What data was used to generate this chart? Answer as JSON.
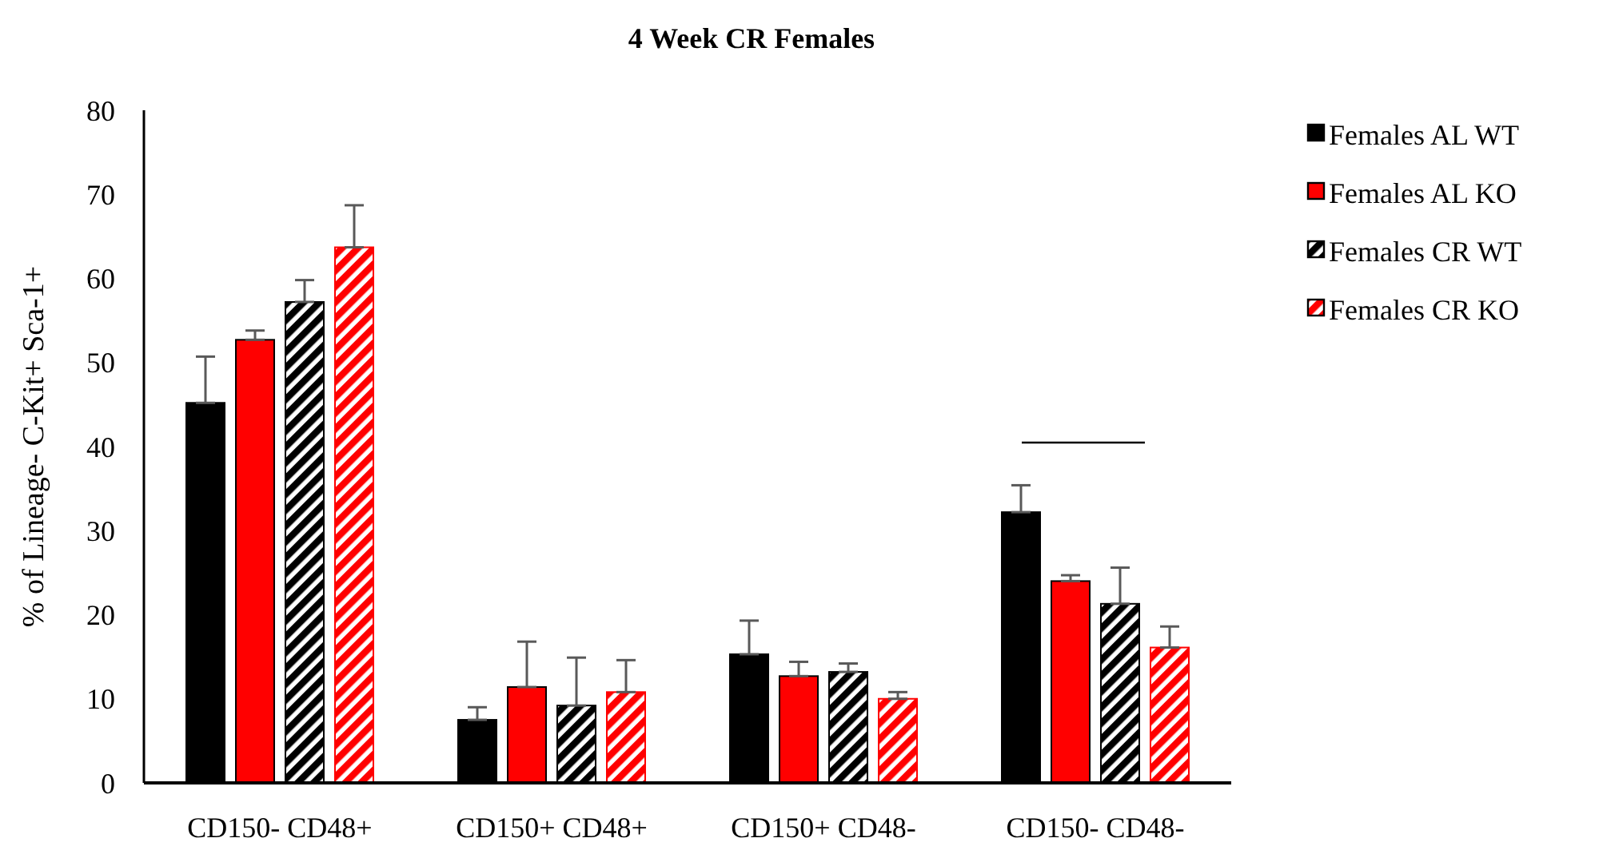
{
  "chart_data": {
    "type": "bar",
    "title": "4 Week CR Females",
    "ylabel": "% of Lineage- C-Kit+ Sca-1+",
    "categories": [
      "CD150- CD48+",
      "CD150+ CD48+",
      "CD150+ CD48-",
      "CD150- CD48-"
    ],
    "series": [
      {
        "name": "Females AL WT",
        "color": "#000000",
        "values": [
          45.2,
          7.5,
          15.3,
          32.2
        ],
        "errors": [
          [
            45.2,
            50.7
          ],
          [
            7.5,
            9.0
          ],
          [
            15.3,
            19.3
          ],
          [
            32.2,
            35.4
          ]
        ]
      },
      {
        "name": "Females AL KO",
        "color": "#ff0000",
        "values": [
          52.7,
          11.4,
          12.7,
          24.0
        ],
        "errors": [
          [
            52.7,
            53.8
          ],
          [
            11.4,
            16.8
          ],
          [
            12.7,
            14.4
          ],
          [
            24.0,
            24.7
          ]
        ]
      },
      {
        "name": "Females CR WT",
        "color": "#000000",
        "values": [
          57.2,
          9.2,
          13.2,
          21.3
        ],
        "errors": [
          [
            57.2,
            59.8
          ],
          [
            9.2,
            14.9
          ],
          [
            13.2,
            14.2
          ],
          [
            21.3,
            25.6
          ]
        ]
      },
      {
        "name": "Females CR KO",
        "color": "#ff0000",
        "values": [
          63.7,
          10.8,
          10.0,
          16.1
        ],
        "errors": [
          [
            63.7,
            68.7
          ],
          [
            10.8,
            14.6
          ],
          [
            10.0,
            10.8
          ],
          [
            16.1,
            18.6
          ]
        ]
      }
    ],
    "ylim": [
      0,
      80
    ],
    "yticks": [
      0,
      10,
      20,
      30,
      40,
      50,
      60,
      70,
      80
    ],
    "grid": false,
    "legend": "right"
  }
}
